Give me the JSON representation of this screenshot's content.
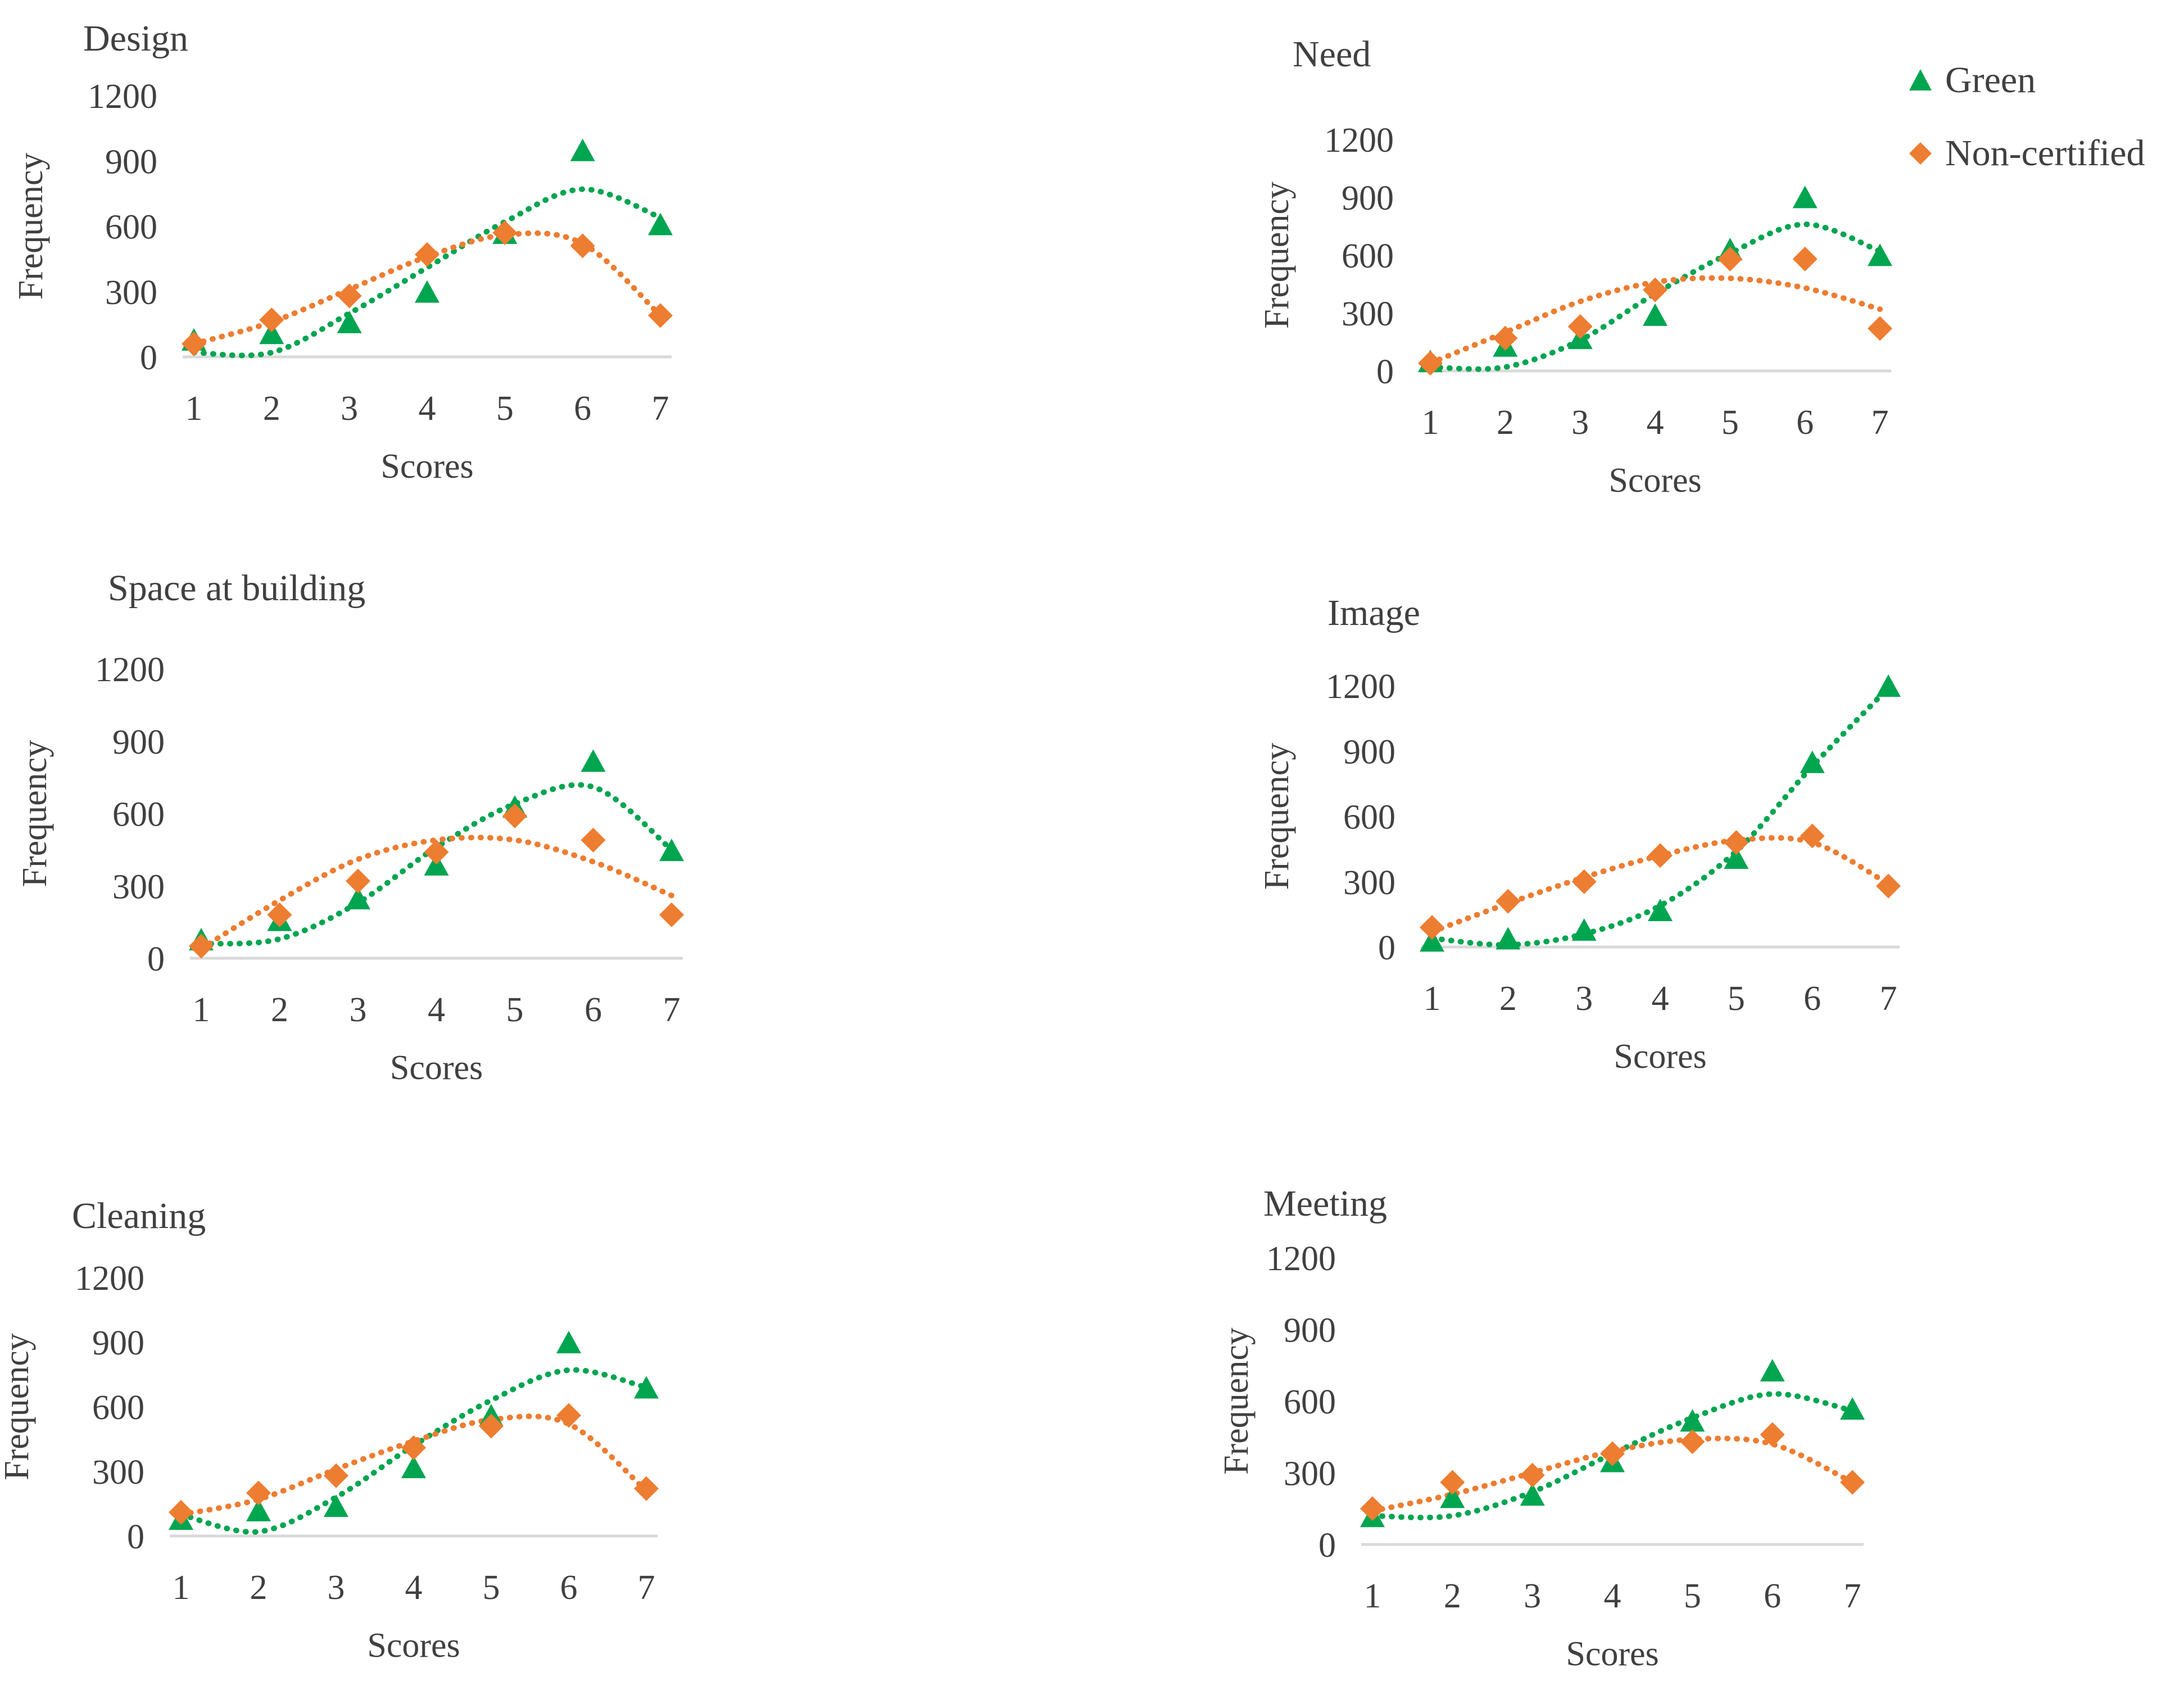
{
  "legend": {
    "green_label": "Green",
    "noncertified_label": "Non-certified",
    "green_color": "#00a550",
    "noncertified_color": "#ed7d31"
  },
  "chart_data": [
    {
      "type": "scatter",
      "title": "Design",
      "xlabel": "Scores",
      "ylabel": "Frequency",
      "categories": [
        1,
        2,
        3,
        4,
        5,
        6,
        7
      ],
      "ylim": [
        0,
        1200
      ],
      "yticks": [
        0,
        300,
        600,
        900,
        1200
      ],
      "series": [
        {
          "name": "Green",
          "marker": "triangle",
          "values": [
            70,
            100,
            150,
            290,
            560,
            940,
            600
          ],
          "trendline": [
            20,
            20,
            200,
            410,
            620,
            770,
            640
          ]
        },
        {
          "name": "Non-certified",
          "marker": "diamond",
          "values": [
            60,
            170,
            280,
            470,
            570,
            510,
            190
          ],
          "trendline": [
            60,
            160,
            310,
            460,
            560,
            520,
            190
          ]
        }
      ]
    },
    {
      "type": "scatter",
      "title": "Need",
      "xlabel": "Scores",
      "ylabel": "Frequency",
      "categories": [
        1,
        2,
        3,
        4,
        5,
        6,
        7
      ],
      "ylim": [
        0,
        1200
      ],
      "yticks": [
        0,
        300,
        600,
        900,
        1200
      ],
      "series": [
        {
          "name": "Green",
          "marker": "triangle",
          "values": [
            40,
            120,
            160,
            280,
            620,
            890,
            590
          ],
          "trendline": [
            20,
            20,
            160,
            400,
            610,
            760,
            620
          ]
        },
        {
          "name": "Non-certified",
          "marker": "diamond",
          "values": [
            40,
            170,
            230,
            420,
            580,
            580,
            220
          ],
          "trendline": [
            40,
            200,
            360,
            460,
            480,
            430,
            320
          ]
        }
      ]
    },
    {
      "type": "scatter",
      "title": "Space at building",
      "xlabel": "Scores",
      "ylabel": "Frequency",
      "categories": [
        1,
        2,
        3,
        4,
        5,
        6,
        7
      ],
      "ylim": [
        0,
        1200
      ],
      "yticks": [
        0,
        300,
        600,
        900,
        1200
      ],
      "series": [
        {
          "name": "Green",
          "marker": "triangle",
          "values": [
            70,
            150,
            240,
            380,
            620,
            810,
            440
          ],
          "trendline": [
            60,
            80,
            230,
            460,
            640,
            710,
            450
          ]
        },
        {
          "name": "Non-certified",
          "marker": "diamond",
          "values": [
            50,
            180,
            320,
            440,
            590,
            490,
            180
          ],
          "trendline": [
            40,
            240,
            410,
            490,
            490,
            400,
            260
          ]
        }
      ]
    },
    {
      "type": "scatter",
      "title": "Image",
      "xlabel": "Scores",
      "ylabel": "Frequency",
      "categories": [
        1,
        2,
        3,
        4,
        5,
        6,
        7
      ],
      "ylim": [
        0,
        1200
      ],
      "yticks": [
        0,
        300,
        600,
        900,
        1200
      ],
      "series": [
        {
          "name": "Green",
          "marker": "triangle",
          "values": [
            20,
            30,
            70,
            160,
            400,
            840,
            1190
          ],
          "trendline": [
            40,
            10,
            60,
            190,
            440,
            830,
            1190
          ]
        },
        {
          "name": "Non-certified",
          "marker": "diamond",
          "values": [
            90,
            210,
            300,
            420,
            480,
            510,
            280
          ],
          "trendline": [
            70,
            200,
            320,
            420,
            490,
            480,
            290
          ]
        }
      ]
    },
    {
      "type": "scatter",
      "title": "Cleaning",
      "xlabel": "Scores",
      "ylabel": "Frequency",
      "categories": [
        1,
        2,
        3,
        4,
        5,
        6,
        7
      ],
      "ylim": [
        0,
        1200
      ],
      "yticks": [
        0,
        300,
        600,
        900,
        1200
      ],
      "series": [
        {
          "name": "Green",
          "marker": "triangle",
          "values": [
            70,
            110,
            130,
            310,
            550,
            890,
            680
          ],
          "trendline": [
            100,
            20,
            180,
            420,
            630,
            770,
            690
          ]
        },
        {
          "name": "Non-certified",
          "marker": "diamond",
          "values": [
            110,
            200,
            280,
            410,
            510,
            560,
            220
          ],
          "trendline": [
            100,
            170,
            310,
            440,
            540,
            520,
            210
          ]
        }
      ]
    },
    {
      "type": "scatter",
      "title": "Meeting",
      "xlabel": "Scores",
      "ylabel": "Frequency",
      "categories": [
        1,
        2,
        3,
        4,
        5,
        6,
        7
      ],
      "ylim": [
        0,
        1200
      ],
      "yticks": [
        0,
        300,
        600,
        900,
        1200
      ],
      "series": [
        {
          "name": "Green",
          "marker": "triangle",
          "values": [
            110,
            190,
            200,
            340,
            510,
            720,
            560
          ],
          "trendline": [
            120,
            120,
            220,
            380,
            530,
            630,
            560
          ]
        },
        {
          "name": "Non-certified",
          "marker": "diamond",
          "values": [
            150,
            260,
            290,
            380,
            430,
            460,
            260
          ],
          "trendline": [
            140,
            210,
            300,
            390,
            440,
            420,
            260
          ]
        }
      ]
    }
  ]
}
